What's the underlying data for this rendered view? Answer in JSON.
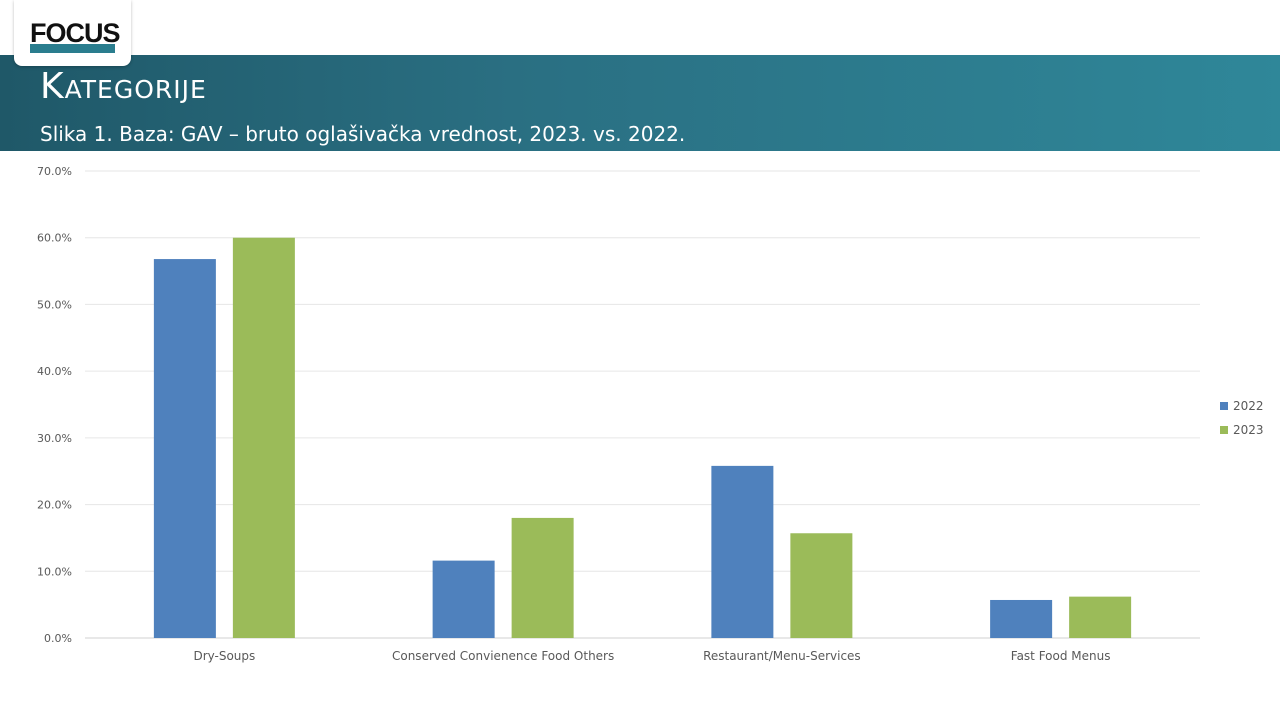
{
  "header": {
    "logo_text": "FOCUS",
    "title": "Kategorije",
    "subtitle": "Slika 1. Baza: GAV – bruto oglašivačka vrednost, 2023. vs. 2022."
  },
  "colors": {
    "header_start": "#1f5868",
    "header_end": "#2f8799",
    "series_2022": "#4f81bd",
    "series_2023": "#9bbb59"
  },
  "chart_data": {
    "type": "bar",
    "categories": [
      "Dry-Soups",
      "Conserved Convienence Food Others",
      "Restaurant/Menu-Services",
      "Fast Food Menus"
    ],
    "series": [
      {
        "name": "2022",
        "values": [
          56.8,
          11.6,
          25.8,
          5.7
        ]
      },
      {
        "name": "2023",
        "values": [
          60.0,
          18.0,
          15.7,
          6.2
        ]
      }
    ],
    "ylim": [
      0,
      70
    ],
    "yticks": [
      "0.0%",
      "10.0%",
      "20.0%",
      "30.0%",
      "40.0%",
      "50.0%",
      "60.0%",
      "70.0%"
    ],
    "grid": true,
    "legend": "right"
  }
}
